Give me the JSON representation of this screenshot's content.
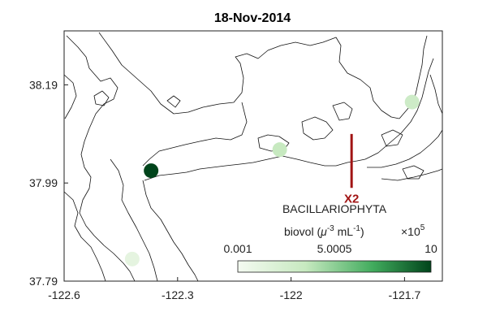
{
  "map": {
    "title": "18-Nov-2014",
    "x_ticks": [
      "-122.6",
      "-122.3",
      "-122",
      "-121.7"
    ],
    "y_ticks": [
      "38.19",
      "37.99",
      "37.79"
    ],
    "x_range": [
      -122.6,
      -121.6
    ],
    "y_range": [
      37.79,
      38.3
    ],
    "marker": {
      "label": "X2",
      "color": "#a11414"
    },
    "colorbar": {
      "title": "BACILLARIOPHYTA",
      "units_prefix": "biovol (",
      "units_mu": "μ",
      "units_exp1": "-3",
      "units_ml": " mL",
      "units_exp2": "-1",
      "units_suffix": ")",
      "multiplier_base": "×10",
      "multiplier_exp": "5",
      "min_label": "0.001",
      "mid_label": "5.0005",
      "max_label": "10",
      "color_low": "#f4faf1",
      "color_high": "#00441b"
    }
  },
  "chart_data": {
    "type": "scatter",
    "title": "18-Nov-2014",
    "xlabel": "",
    "ylabel": "",
    "xlim": [
      -122.6,
      -121.6
    ],
    "ylim": [
      37.79,
      38.3
    ],
    "colorbar_range": [
      0.001,
      10
    ],
    "colorbar_title": "BACILLARIOPHYTA biovol (μ-3 mL-1) ×10^5",
    "points": [
      {
        "lon": -122.37,
        "lat": 38.015,
        "value": 10
      },
      {
        "lon": -122.03,
        "lat": 38.058,
        "value": 3.5
      },
      {
        "lon": -121.68,
        "lat": 38.155,
        "value": 3.0
      },
      {
        "lon": -122.42,
        "lat": 37.835,
        "value": 1.2
      }
    ],
    "reference_line": {
      "label": "X2",
      "lon": -121.84,
      "lat_range": [
        37.98,
        38.09
      ]
    }
  }
}
